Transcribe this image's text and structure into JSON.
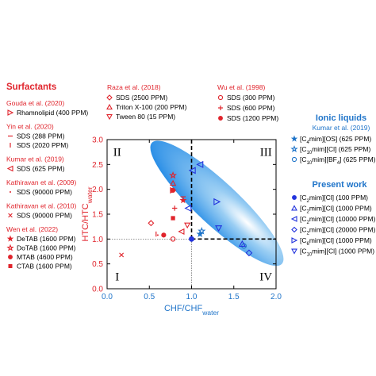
{
  "chart_data": {
    "type": "scatter",
    "xlabel": "CHF/CHF",
    "xlabel_sub": "water",
    "ylabel": "HTC/HTC",
    "ylabel_sub": "water",
    "xlim": [
      0.0,
      2.0
    ],
    "ylim": [
      0.0,
      3.0
    ],
    "x_ticks": [
      "0.0",
      "0.5",
      "1.0",
      "1.5",
      "2.0"
    ],
    "y_ticks": [
      "0.0",
      "0.5",
      "1.0",
      "1.5",
      "2.0",
      "2.5",
      "3.0"
    ],
    "quadrant_labels": [
      "II",
      "III",
      "I",
      "IV"
    ],
    "reference_lines": {
      "x": 1.0,
      "y": 1.0
    },
    "colors": {
      "surfactants": "#e0242c",
      "ionic_liquids": "#1f74c9",
      "present_work": "#2233dd",
      "region": "#3a9ce8"
    },
    "groups": {
      "surfactants": {
        "header": "Surfactants",
        "entries": [
          {
            "author": "Gouda et al. (2020)",
            "items": [
              {
                "marker": "tri-right",
                "label": "Rhamnolipid (400 PPM)",
                "x": 0.78,
                "y": 1.98
              }
            ]
          },
          {
            "author": "Yin et al. (2020)",
            "items": [
              {
                "marker": "hline",
                "label": "SDS (288 PPM)",
                "x": 0.9,
                "y": 1.85
              },
              {
                "marker": "vline",
                "label": "SDS (2020 PPM)",
                "x": 0.58,
                "y": 1.1
              }
            ]
          },
          {
            "author": "Kumar et al. (2019)",
            "items": [
              {
                "marker": "tri-left",
                "label": "SDS (625 PPM)",
                "x": 0.88,
                "y": 1.15
              }
            ]
          },
          {
            "author": "Kathiravan et al. (2009)",
            "items": [
              {
                "marker": "dot",
                "label": "SDS (90000 PPM)",
                "x": 0.6,
                "y": 1.08
              }
            ]
          },
          {
            "author": "Kathiravan et al. (2010)",
            "items": [
              {
                "marker": "x",
                "label": "SDS (90000 PPM)",
                "x": 0.17,
                "y": 0.68
              }
            ]
          },
          {
            "author": "Wen et al. (2022)",
            "items": [
              {
                "marker": "star",
                "label": "DeTAB (1600 PPM)",
                "x": 0.9,
                "y": 1.78
              },
              {
                "marker": "star-open",
                "label": "DoTAB (1600 PPM)",
                "x": 0.78,
                "y": 2.28
              },
              {
                "marker": "circle-filled",
                "label": "MTAB (4600 PPM)",
                "x": 0.78,
                "y": 1.98
              },
              {
                "marker": "square-filled",
                "label": "CTAB (1600 PPM)",
                "x": 0.78,
                "y": 1.42
              }
            ]
          },
          {
            "author": "Raza et al. (2018)",
            "items": [
              {
                "marker": "diamond-open",
                "label": "SDS (2500 PPM)",
                "x": 0.52,
                "y": 1.32
              },
              {
                "marker": "tri-up-open",
                "label": "Triton X-100 (200 PPM)",
                "x": 0.78,
                "y": 2.12
              },
              {
                "marker": "tri-down-open",
                "label": "Tween 80 (15 PPM)",
                "x": 0.95,
                "y": 1.28
              }
            ]
          },
          {
            "author": "Wu et al. (1998)",
            "items": [
              {
                "marker": "circle-open",
                "label": "SDS (300 PPM)",
                "x": 0.78,
                "y": 1.0
              },
              {
                "marker": "plus",
                "label": "SDS (600 PPM)",
                "x": 0.8,
                "y": 1.62
              },
              {
                "marker": "circle-filled",
                "label": "SDS (1200 PPM)",
                "x": 0.67,
                "y": 1.08
              }
            ]
          }
        ]
      },
      "ionic_liquids": {
        "header": "Ionic liquids",
        "author": "Kumar et al. (2019)",
        "items": [
          {
            "marker": "star",
            "prefix": "[C",
            "sub": "4",
            "mid": "mim][OS]",
            "sub2": "",
            "suffix": " (625 PPM)",
            "x": 1.1,
            "y": 1.1
          },
          {
            "marker": "star-open",
            "prefix": "[C",
            "sub": "10",
            "mid": "mim][Cl]",
            "sub2": "",
            "suffix": " (625 PPM)",
            "x": 1.12,
            "y": 1.16
          },
          {
            "marker": "circle-open",
            "prefix": "[C",
            "sub": "10",
            "mid": "mim][BF",
            "sub2": "4",
            "suffix": "] (625 PPM)",
            "x": 1.62,
            "y": 0.86
          }
        ]
      },
      "present_work": {
        "header": "Present work",
        "items": [
          {
            "marker": "circle-filled",
            "prefix": "[C",
            "sub": "2",
            "mid": "mim][Cl]",
            "suffix": " (100 PPM)",
            "x": 1.0,
            "y": 1.0
          },
          {
            "marker": "tri-up-open",
            "prefix": "[C",
            "sub": "2",
            "mid": "mim][Cl]",
            "suffix": " (1000 PPM)",
            "x": 1.6,
            "y": 0.9
          },
          {
            "marker": "tri-left-open",
            "prefix": "[C",
            "sub": "2",
            "mid": "mim][Cl]",
            "suffix": " (10000 PPM)",
            "x": 0.96,
            "y": 1.62
          },
          {
            "marker": "diamond-open",
            "prefix": "[C",
            "sub": "2",
            "mid": "mim][Cl]",
            "suffix": " (20000 PPM)",
            "x": 1.68,
            "y": 0.72
          },
          {
            "marker": "tri-right-open",
            "prefix": "[C",
            "sub": "6",
            "mid": "mim][Cl]",
            "suffix": " (1000 PPM)",
            "x": 1.3,
            "y": 1.75
          },
          {
            "marker": "tri-down-open",
            "prefix": "[C",
            "sub": "10",
            "mid": "mim][Cl]",
            "suffix": " (1000 PPM)",
            "x": 1.32,
            "y": 1.22
          }
        ]
      }
    },
    "present_work_extra_points": [
      {
        "marker": "tri-left-open",
        "x": 1.01,
        "y": 2.38
      },
      {
        "marker": "tri-left-open",
        "x": 1.1,
        "y": 2.5
      }
    ]
  }
}
